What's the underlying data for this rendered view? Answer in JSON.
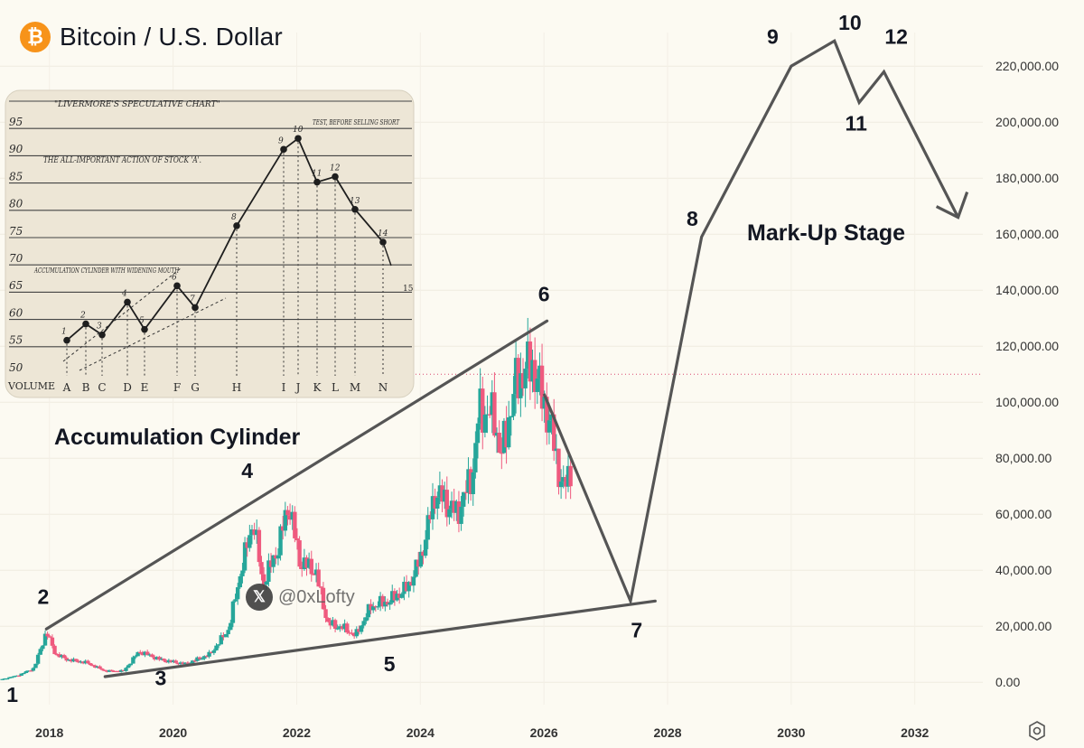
{
  "header": {
    "title": "Bitcoin / U.S. Dollar",
    "logo_glyph": "₿"
  },
  "watermark": {
    "handle": "@0xLofty",
    "logo_glyph": "𝕏"
  },
  "annotations": {
    "accumulation_label": "Accumulation Cylinder",
    "markup_label": "Mark-Up Stage"
  },
  "inset_sketch": {
    "y_labels": [
      "95",
      "90",
      "85",
      "80",
      "75",
      "70",
      "65",
      "60",
      "55",
      "50"
    ],
    "volume_label": "VOLUME",
    "title": "\"LIVERMORE'S SPECULATIVE CHART\"",
    "subtitle": "THE ALL-IMPORTANT ACTION OF STOCK 'A'.",
    "cylinder_note": "ACCUMULATION CYLINDER WITH WIDENING MOUTH",
    "test_note": "TEST, BEFORE SELLING SHORT",
    "letters": [
      "A",
      "B",
      "C",
      "D",
      "E",
      "F",
      "G",
      "H",
      "I",
      "J",
      "K",
      "L",
      "M",
      "N"
    ],
    "point_numbers": [
      "1",
      "2",
      "3",
      "4",
      "5",
      "6",
      "7",
      "8",
      "9",
      "10",
      "11",
      "12",
      "13",
      "14",
      "15"
    ],
    "points": [
      52,
      55,
      53,
      59,
      54,
      62,
      58,
      73,
      87,
      89,
      81,
      82,
      76,
      70
    ]
  },
  "colors": {
    "up": "#26a69a",
    "down": "#ef5a7e",
    "annotation_line": "#555555",
    "price_line": "#d9486f",
    "text": "#131722"
  },
  "chart_data": {
    "type": "candlestick",
    "title": "Bitcoin / U.S. Dollar",
    "interval": "weekly",
    "x_ticks": [
      "2018",
      "2020",
      "2022",
      "2024",
      "2026",
      "2028",
      "2030",
      "2032"
    ],
    "y_ticks": [
      "0.00",
      "20,000.00",
      "40,000.00",
      "60,000.00",
      "80,000.00",
      "100,000.00",
      "120,000.00",
      "140,000.00",
      "160,000.00",
      "180,000.00",
      "200,000.00",
      "220,000.00"
    ],
    "ylim": [
      -8000,
      232000
    ],
    "xlim": [
      2017.2,
      2033.1
    ],
    "current_price_line": 110000,
    "price_path": [
      [
        2017.2,
        900
      ],
      [
        2017.5,
        2500
      ],
      [
        2017.75,
        5000
      ],
      [
        2017.95,
        18000
      ],
      [
        2018.1,
        10000
      ],
      [
        2018.3,
        8000
      ],
      [
        2018.6,
        7000
      ],
      [
        2018.9,
        4000
      ],
      [
        2019.2,
        4000
      ],
      [
        2019.45,
        11000
      ],
      [
        2019.8,
        8000
      ],
      [
        2020.2,
        6500
      ],
      [
        2020.6,
        10000
      ],
      [
        2020.9,
        19000
      ],
      [
        2021.1,
        40000
      ],
      [
        2021.3,
        58000
      ],
      [
        2021.45,
        35000
      ],
      [
        2021.7,
        48000
      ],
      [
        2021.87,
        64000
      ],
      [
        2022.05,
        43000
      ],
      [
        2022.3,
        40000
      ],
      [
        2022.5,
        21000
      ],
      [
        2022.8,
        19000
      ],
      [
        2022.95,
        16500
      ],
      [
        2023.2,
        27000
      ],
      [
        2023.5,
        29000
      ],
      [
        2023.8,
        34000
      ],
      [
        2024.0,
        44000
      ],
      [
        2024.25,
        68000
      ],
      [
        2024.6,
        60000
      ],
      [
        2024.85,
        75000
      ],
      [
        2024.95,
        97000
      ],
      [
        2025.2,
        95000
      ],
      [
        2025.3,
        80000
      ],
      [
        2025.55,
        107000
      ],
      [
        2025.8,
        114000
      ],
      [
        2026.0,
        100000
      ],
      [
        2026.15,
        87000
      ],
      [
        2026.3,
        68000
      ],
      [
        2026.45,
        78000
      ]
    ],
    "projection": [
      {
        "label": "6",
        "x": 2026.0,
        "y": 103000
      },
      {
        "label": "7",
        "x": 2027.4,
        "y": 29000
      },
      {
        "label": "8",
        "x": 2028.55,
        "y": 159000
      },
      {
        "label": "9",
        "x": 2030.0,
        "y": 220000
      },
      {
        "label": "10",
        "x": 2030.7,
        "y": 229000
      },
      {
        "label": "11",
        "x": 2031.1,
        "y": 207000
      },
      {
        "label": "12",
        "x": 2031.5,
        "y": 218000
      },
      {
        "label": "arrow-end",
        "x": 2032.7,
        "y": 166000
      }
    ],
    "wave_labels": [
      {
        "label": "1",
        "x": 2017.4,
        "y": -7000
      },
      {
        "label": "2",
        "x": 2017.9,
        "y": 28000
      },
      {
        "label": "3",
        "x": 2019.8,
        "y": -1000
      },
      {
        "label": "4",
        "x": 2021.2,
        "y": 73000
      },
      {
        "label": "5",
        "x": 2023.5,
        "y": 4000
      },
      {
        "label": "6",
        "x": 2026.0,
        "y": 136000
      },
      {
        "label": "7",
        "x": 2027.5,
        "y": 16000
      },
      {
        "label": "8",
        "x": 2028.4,
        "y": 163000
      },
      {
        "label": "9",
        "x": 2029.7,
        "y": 228000
      },
      {
        "label": "10",
        "x": 2030.95,
        "y": 233000
      },
      {
        "label": "11",
        "x": 2031.05,
        "y": 197000
      },
      {
        "label": "12",
        "x": 2031.7,
        "y": 228000
      }
    ],
    "trendlines": [
      {
        "name": "upper",
        "from": [
          2017.95,
          19000
        ],
        "to": [
          2026.05,
          129000
        ]
      },
      {
        "name": "lower",
        "from": [
          2018.9,
          2000
        ],
        "to": [
          2027.8,
          29000
        ]
      }
    ]
  }
}
